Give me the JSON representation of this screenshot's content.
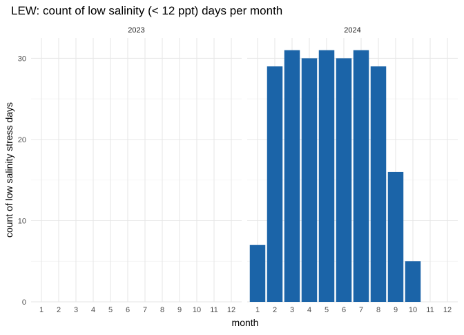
{
  "chart_data": {
    "type": "bar",
    "title": "LEW: count of low salinity (< 12 ppt) days per month",
    "xlabel": "month",
    "ylabel": "count of low salinity stress days",
    "categories": [
      "1",
      "2",
      "3",
      "4",
      "5",
      "6",
      "7",
      "8",
      "9",
      "10",
      "11",
      "12"
    ],
    "ylim": [
      0,
      32.5
    ],
    "yticks": [
      0,
      10,
      20,
      30
    ],
    "grid": true,
    "bar_color": "#1b64a8",
    "panels": [
      {
        "label": "2023",
        "values": [
          null,
          null,
          null,
          null,
          null,
          null,
          null,
          null,
          null,
          null,
          null,
          null
        ]
      },
      {
        "label": "2024",
        "values": [
          7,
          29,
          31,
          30,
          31,
          30,
          31,
          29,
          16,
          5,
          null,
          null
        ]
      }
    ]
  }
}
